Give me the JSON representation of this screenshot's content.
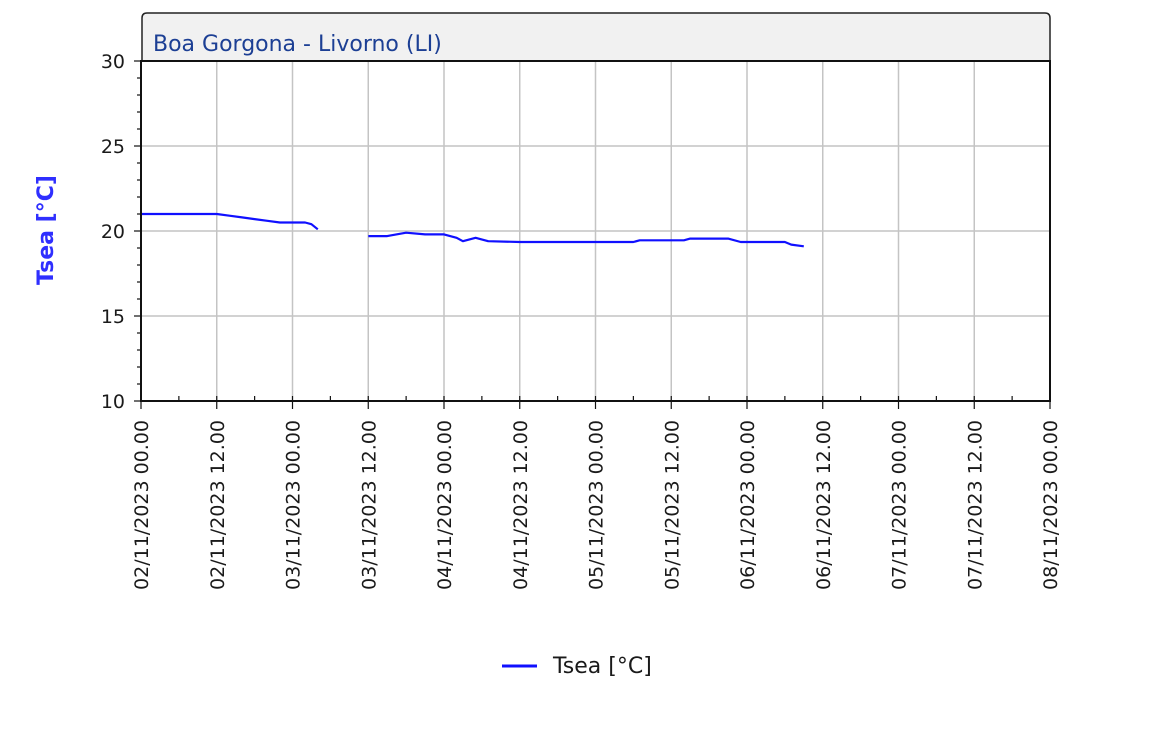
{
  "chart_data": {
    "type": "line",
    "title": "Boa Gorgona - Livorno (LI)",
    "ylabel": "Tsea [°C]",
    "xlabel": "",
    "ylim": [
      10,
      30
    ],
    "yticks": [
      "10",
      "15",
      "20",
      "25",
      "30"
    ],
    "xlim": [
      "02/11/2023 00.00",
      "08/11/2023 00.00"
    ],
    "xticks": [
      "02/11/2023 00.00",
      "02/11/2023 12.00",
      "03/11/2023 00.00",
      "03/11/2023 12.00",
      "04/11/2023 00.00",
      "04/11/2023 12.00",
      "05/11/2023 00.00",
      "05/11/2023 12.00",
      "06/11/2023 00.00",
      "06/11/2023 12.00",
      "07/11/2023 00.00",
      "07/11/2023 12.00",
      "08/11/2023 00.00"
    ],
    "grid": true,
    "legend_position": "bottom-center",
    "series": [
      {
        "name": "Tsea [°C]",
        "color": "#1010ff",
        "segments": [
          [
            {
              "x": "02/11/2023 00.00",
              "y": 21.0
            },
            {
              "x": "02/11/2023 06.00",
              "y": 21.0
            },
            {
              "x": "02/11/2023 12.00",
              "y": 21.0
            },
            {
              "x": "02/11/2023 14.00",
              "y": 20.9
            },
            {
              "x": "02/11/2023 16.00",
              "y": 20.8
            },
            {
              "x": "02/11/2023 18.00",
              "y": 20.7
            },
            {
              "x": "02/11/2023 20.00",
              "y": 20.6
            },
            {
              "x": "02/11/2023 22.00",
              "y": 20.5
            },
            {
              "x": "03/11/2023 00.00",
              "y": 20.5
            },
            {
              "x": "03/11/2023 02.00",
              "y": 20.5
            },
            {
              "x": "03/11/2023 03.00",
              "y": 20.4
            },
            {
              "x": "03/11/2023 04.00",
              "y": 20.1
            }
          ],
          [
            {
              "x": "03/11/2023 12.00",
              "y": 19.7
            },
            {
              "x": "03/11/2023 15.00",
              "y": 19.7
            },
            {
              "x": "03/11/2023 18.00",
              "y": 19.9
            },
            {
              "x": "03/11/2023 21.00",
              "y": 19.8
            },
            {
              "x": "04/11/2023 00.00",
              "y": 19.8
            },
            {
              "x": "04/11/2023 02.00",
              "y": 19.6
            },
            {
              "x": "04/11/2023 03.00",
              "y": 19.4
            },
            {
              "x": "04/11/2023 05.00",
              "y": 19.6
            },
            {
              "x": "04/11/2023 07.00",
              "y": 19.4
            },
            {
              "x": "04/11/2023 12.00",
              "y": 19.35
            },
            {
              "x": "05/11/2023 00.00",
              "y": 19.35
            },
            {
              "x": "05/11/2023 06.00",
              "y": 19.35
            },
            {
              "x": "05/11/2023 07.00",
              "y": 19.45
            },
            {
              "x": "05/11/2023 14.00",
              "y": 19.45
            },
            {
              "x": "05/11/2023 15.00",
              "y": 19.55
            },
            {
              "x": "05/11/2023 21.00",
              "y": 19.55
            },
            {
              "x": "05/11/2023 23.00",
              "y": 19.35
            },
            {
              "x": "06/11/2023 06.00",
              "y": 19.35
            },
            {
              "x": "06/11/2023 07.00",
              "y": 19.2
            },
            {
              "x": "06/11/2023 09.00",
              "y": 19.1
            }
          ]
        ]
      }
    ]
  }
}
